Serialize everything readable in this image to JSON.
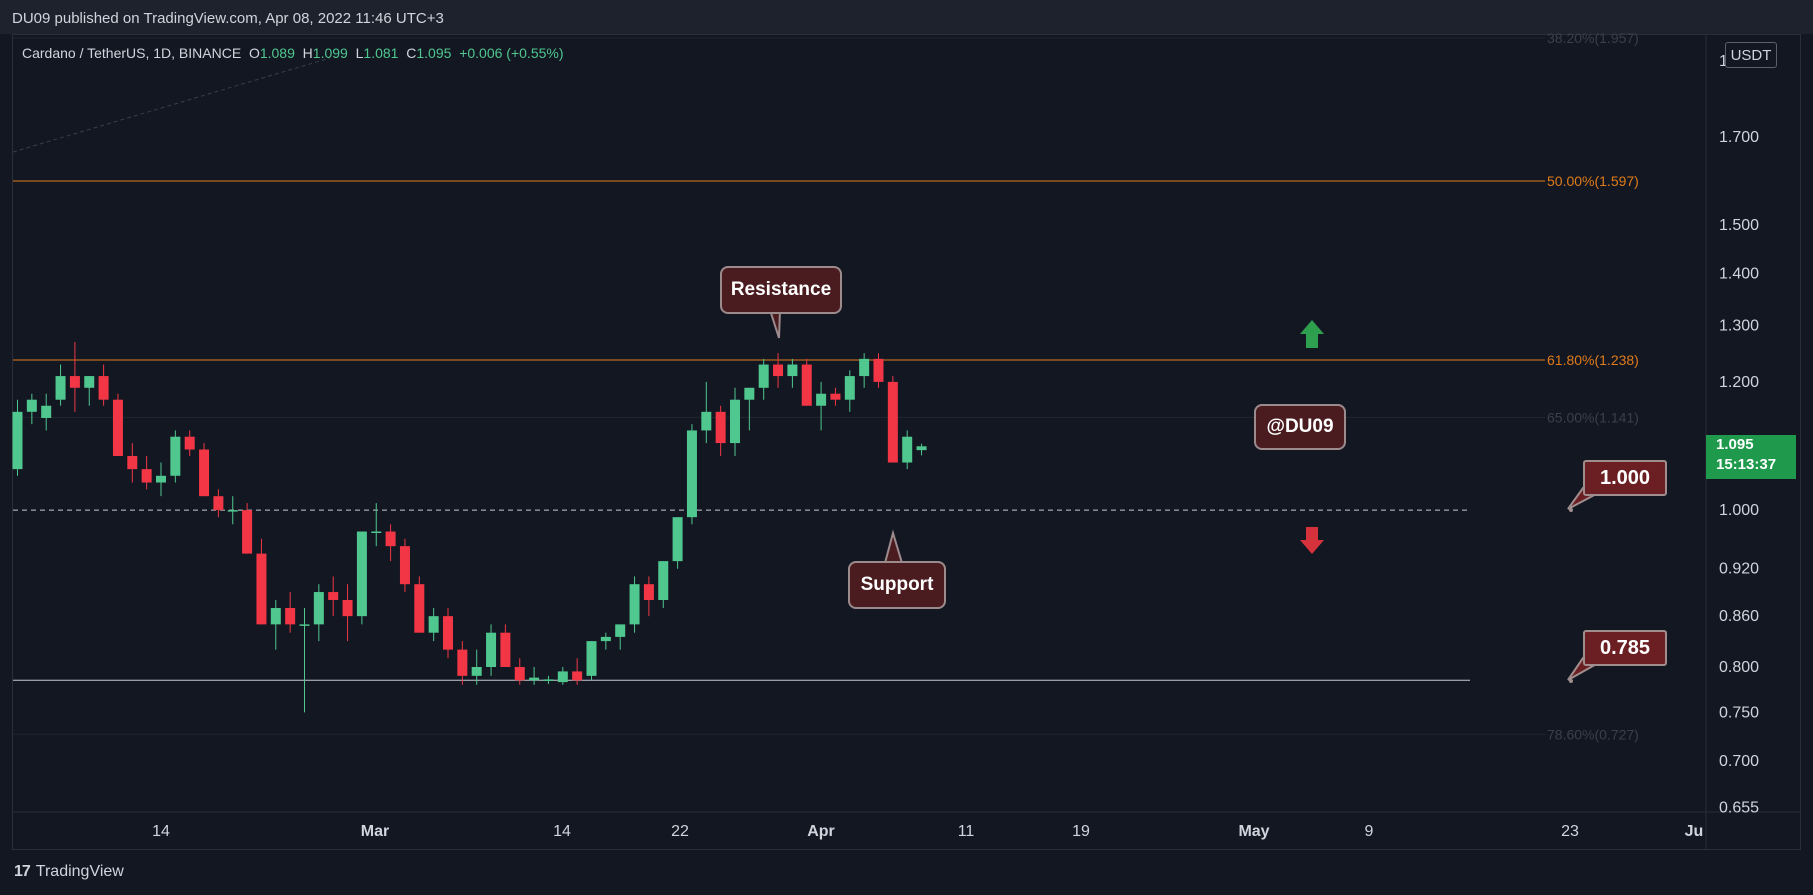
{
  "header": {
    "publisher": "DU09 published on TradingView.com, Apr 08, 2022 11:46 UTC+3"
  },
  "legend": {
    "symbol": "Cardano / TetherUS, 1D, BINANCE",
    "o_label": "O",
    "o": "1.089",
    "h_label": "H",
    "h": "1.099",
    "l_label": "L",
    "l": "1.081",
    "c_label": "C",
    "c": "1.095",
    "change": "+0.006 (+0.55%)"
  },
  "currency_label": "USDT",
  "last_price": {
    "value": "1.095",
    "countdown": "15:13:37"
  },
  "callouts": {
    "resistance": "Resistance",
    "support": "Support",
    "watermark": "@DU09"
  },
  "price_tags": {
    "upper": "1.000",
    "lower": "0.785"
  },
  "footer": {
    "brand": "TradingView"
  },
  "colors": {
    "background": "#131722",
    "up": "#4fc78f",
    "down": "#f23645",
    "fib": "#e07b1a",
    "last_price": "#1f9a4d"
  },
  "chart_data": {
    "type": "candlestick",
    "title": "Cardano / TetherUS, 1D, BINANCE",
    "y_scale": "log",
    "ylim": [
      0.65,
      1.9
    ],
    "y_ticks": [
      "1.700",
      "1.500",
      "1.400",
      "1.300",
      "1.200",
      "1.000",
      "0.920",
      "0.860",
      "0.800",
      "0.750",
      "0.700",
      "0.655"
    ],
    "x_ticks": [
      {
        "label": "14",
        "bold": false
      },
      {
        "label": "Mar",
        "bold": true
      },
      {
        "label": "14",
        "bold": false
      },
      {
        "label": "22",
        "bold": false
      },
      {
        "label": "Apr",
        "bold": true
      },
      {
        "label": "11",
        "bold": false
      },
      {
        "label": "19",
        "bold": false
      },
      {
        "label": "May",
        "bold": true
      },
      {
        "label": "9",
        "bold": false
      },
      {
        "label": "23",
        "bold": false
      },
      {
        "label": "Ju",
        "bold": true
      }
    ],
    "fib_levels": [
      {
        "label": "38.20%(1.957)",
        "value": 1.957,
        "faded": true
      },
      {
        "label": "50.00%(1.597)",
        "value": 1.597,
        "faded": false
      },
      {
        "label": "61.80%(1.238)",
        "value": 1.238,
        "faded": false
      },
      {
        "label": "65.00%(1.141)",
        "value": 1.141,
        "faded": true
      },
      {
        "label": "78.60%(0.727)",
        "value": 0.727,
        "faded": true
      }
    ],
    "horizontal_lines": [
      {
        "value": 1.0,
        "style": "dashed"
      },
      {
        "value": 0.785,
        "style": "solid"
      }
    ],
    "candles": [
      {
        "o": 1.06,
        "h": 1.17,
        "l": 1.05,
        "c": 1.15
      },
      {
        "o": 1.15,
        "h": 1.18,
        "l": 1.13,
        "c": 1.17
      },
      {
        "o": 1.14,
        "h": 1.18,
        "l": 1.12,
        "c": 1.16
      },
      {
        "o": 1.17,
        "h": 1.23,
        "l": 1.16,
        "c": 1.21
      },
      {
        "o": 1.21,
        "h": 1.27,
        "l": 1.15,
        "c": 1.19
      },
      {
        "o": 1.19,
        "h": 1.21,
        "l": 1.16,
        "c": 1.21
      },
      {
        "o": 1.21,
        "h": 1.23,
        "l": 1.16,
        "c": 1.17
      },
      {
        "o": 1.17,
        "h": 1.18,
        "l": 1.08,
        "c": 1.08
      },
      {
        "o": 1.08,
        "h": 1.1,
        "l": 1.04,
        "c": 1.06
      },
      {
        "o": 1.06,
        "h": 1.08,
        "l": 1.03,
        "c": 1.04
      },
      {
        "o": 1.04,
        "h": 1.07,
        "l": 1.02,
        "c": 1.05
      },
      {
        "o": 1.05,
        "h": 1.12,
        "l": 1.04,
        "c": 1.11
      },
      {
        "o": 1.11,
        "h": 1.12,
        "l": 1.08,
        "c": 1.09
      },
      {
        "o": 1.09,
        "h": 1.1,
        "l": 1.02,
        "c": 1.02
      },
      {
        "o": 1.02,
        "h": 1.03,
        "l": 0.99,
        "c": 1.0
      },
      {
        "o": 1.0,
        "h": 1.02,
        "l": 0.98,
        "c": 1.0
      },
      {
        "o": 1.0,
        "h": 1.01,
        "l": 0.94,
        "c": 0.94
      },
      {
        "o": 0.94,
        "h": 0.96,
        "l": 0.85,
        "c": 0.85
      },
      {
        "o": 0.85,
        "h": 0.88,
        "l": 0.82,
        "c": 0.87
      },
      {
        "o": 0.87,
        "h": 0.89,
        "l": 0.84,
        "c": 0.85
      },
      {
        "o": 0.85,
        "h": 0.87,
        "l": 0.75,
        "c": 0.85
      },
      {
        "o": 0.85,
        "h": 0.9,
        "l": 0.83,
        "c": 0.89
      },
      {
        "o": 0.89,
        "h": 0.91,
        "l": 0.86,
        "c": 0.88
      },
      {
        "o": 0.88,
        "h": 0.9,
        "l": 0.83,
        "c": 0.86
      },
      {
        "o": 0.86,
        "h": 0.97,
        "l": 0.85,
        "c": 0.97
      },
      {
        "o": 0.97,
        "h": 1.01,
        "l": 0.95,
        "c": 0.97
      },
      {
        "o": 0.97,
        "h": 0.98,
        "l": 0.93,
        "c": 0.95
      },
      {
        "o": 0.95,
        "h": 0.96,
        "l": 0.89,
        "c": 0.9
      },
      {
        "o": 0.9,
        "h": 0.91,
        "l": 0.84,
        "c": 0.84
      },
      {
        "o": 0.84,
        "h": 0.87,
        "l": 0.83,
        "c": 0.86
      },
      {
        "o": 0.86,
        "h": 0.87,
        "l": 0.81,
        "c": 0.82
      },
      {
        "o": 0.82,
        "h": 0.83,
        "l": 0.78,
        "c": 0.79
      },
      {
        "o": 0.79,
        "h": 0.82,
        "l": 0.78,
        "c": 0.8
      },
      {
        "o": 0.8,
        "h": 0.85,
        "l": 0.79,
        "c": 0.84
      },
      {
        "o": 0.84,
        "h": 0.85,
        "l": 0.8,
        "c": 0.8
      },
      {
        "o": 0.8,
        "h": 0.81,
        "l": 0.78,
        "c": 0.785
      },
      {
        "o": 0.785,
        "h": 0.8,
        "l": 0.78,
        "c": 0.788
      },
      {
        "o": 0.786,
        "h": 0.79,
        "l": 0.781,
        "c": 0.786
      },
      {
        "o": 0.783,
        "h": 0.8,
        "l": 0.78,
        "c": 0.795
      },
      {
        "o": 0.795,
        "h": 0.81,
        "l": 0.78,
        "c": 0.785
      },
      {
        "o": 0.79,
        "h": 0.83,
        "l": 0.785,
        "c": 0.83
      },
      {
        "o": 0.83,
        "h": 0.84,
        "l": 0.82,
        "c": 0.835
      },
      {
        "o": 0.835,
        "h": 0.85,
        "l": 0.82,
        "c": 0.85
      },
      {
        "o": 0.85,
        "h": 0.91,
        "l": 0.84,
        "c": 0.9
      },
      {
        "o": 0.9,
        "h": 0.91,
        "l": 0.86,
        "c": 0.88
      },
      {
        "o": 0.88,
        "h": 0.93,
        "l": 0.87,
        "c": 0.93
      },
      {
        "o": 0.93,
        "h": 0.99,
        "l": 0.92,
        "c": 0.99
      },
      {
        "o": 0.99,
        "h": 1.13,
        "l": 0.98,
        "c": 1.12
      },
      {
        "o": 1.12,
        "h": 1.2,
        "l": 1.1,
        "c": 1.15
      },
      {
        "o": 1.15,
        "h": 1.16,
        "l": 1.08,
        "c": 1.1
      },
      {
        "o": 1.1,
        "h": 1.19,
        "l": 1.08,
        "c": 1.17
      },
      {
        "o": 1.17,
        "h": 1.19,
        "l": 1.12,
        "c": 1.19
      },
      {
        "o": 1.19,
        "h": 1.24,
        "l": 1.17,
        "c": 1.23
      },
      {
        "o": 1.23,
        "h": 1.25,
        "l": 1.19,
        "c": 1.21
      },
      {
        "o": 1.21,
        "h": 1.24,
        "l": 1.19,
        "c": 1.23
      },
      {
        "o": 1.23,
        "h": 1.24,
        "l": 1.16,
        "c": 1.16
      },
      {
        "o": 1.16,
        "h": 1.2,
        "l": 1.12,
        "c": 1.18
      },
      {
        "o": 1.18,
        "h": 1.19,
        "l": 1.16,
        "c": 1.17
      },
      {
        "o": 1.17,
        "h": 1.22,
        "l": 1.15,
        "c": 1.21
      },
      {
        "o": 1.21,
        "h": 1.25,
        "l": 1.19,
        "c": 1.24
      },
      {
        "o": 1.24,
        "h": 1.25,
        "l": 1.19,
        "c": 1.2
      },
      {
        "o": 1.2,
        "h": 1.21,
        "l": 1.07,
        "c": 1.07
      },
      {
        "o": 1.07,
        "h": 1.12,
        "l": 1.06,
        "c": 1.11
      },
      {
        "o": 1.089,
        "h": 1.099,
        "l": 1.081,
        "c": 1.095
      }
    ]
  }
}
